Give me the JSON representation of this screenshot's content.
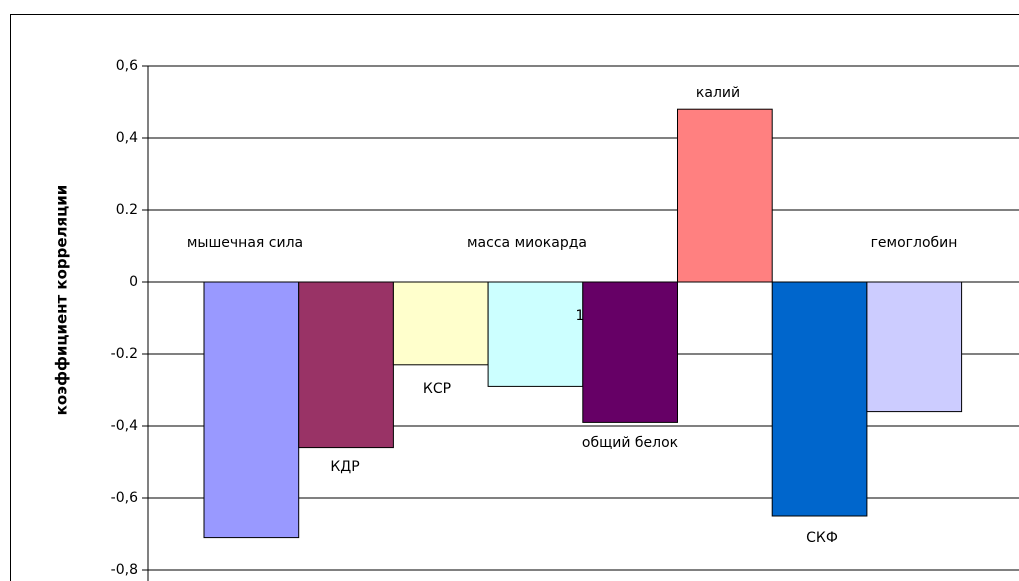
{
  "chart_data": {
    "type": "bar",
    "y_label": "коэффициент корреляции",
    "categories": [
      "мышечная сила",
      "КДР",
      "КСР",
      "масса миокарда",
      "общий белок",
      "калий",
      "СКФ",
      "гемоглобин"
    ],
    "values": [
      -0.71,
      -0.46,
      -0.23,
      -0.29,
      -0.39,
      0.48,
      -0.65,
      -0.36
    ],
    "colors": [
      "#9999ff",
      "#993366",
      "#ffffcc",
      "#ccffff",
      "#660066",
      "#ff8080",
      "#0066cc",
      "#ccccff"
    ],
    "annotation": "1",
    "ylim": [
      -0.8,
      0.6
    ],
    "yticks": [
      {
        "value": -0.8,
        "label": "-0,8"
      },
      {
        "value": -0.6,
        "label": "-0,6"
      },
      {
        "value": -0.4,
        "label": "-0,4"
      },
      {
        "value": -0.2,
        "label": "-0.2"
      },
      0,
      {
        "value": 0.2,
        "label": "0.2"
      },
      {
        "value": 0.4,
        "label": "0,4"
      },
      {
        "value": 0.6,
        "label": "0,6"
      }
    ],
    "grid": true
  }
}
